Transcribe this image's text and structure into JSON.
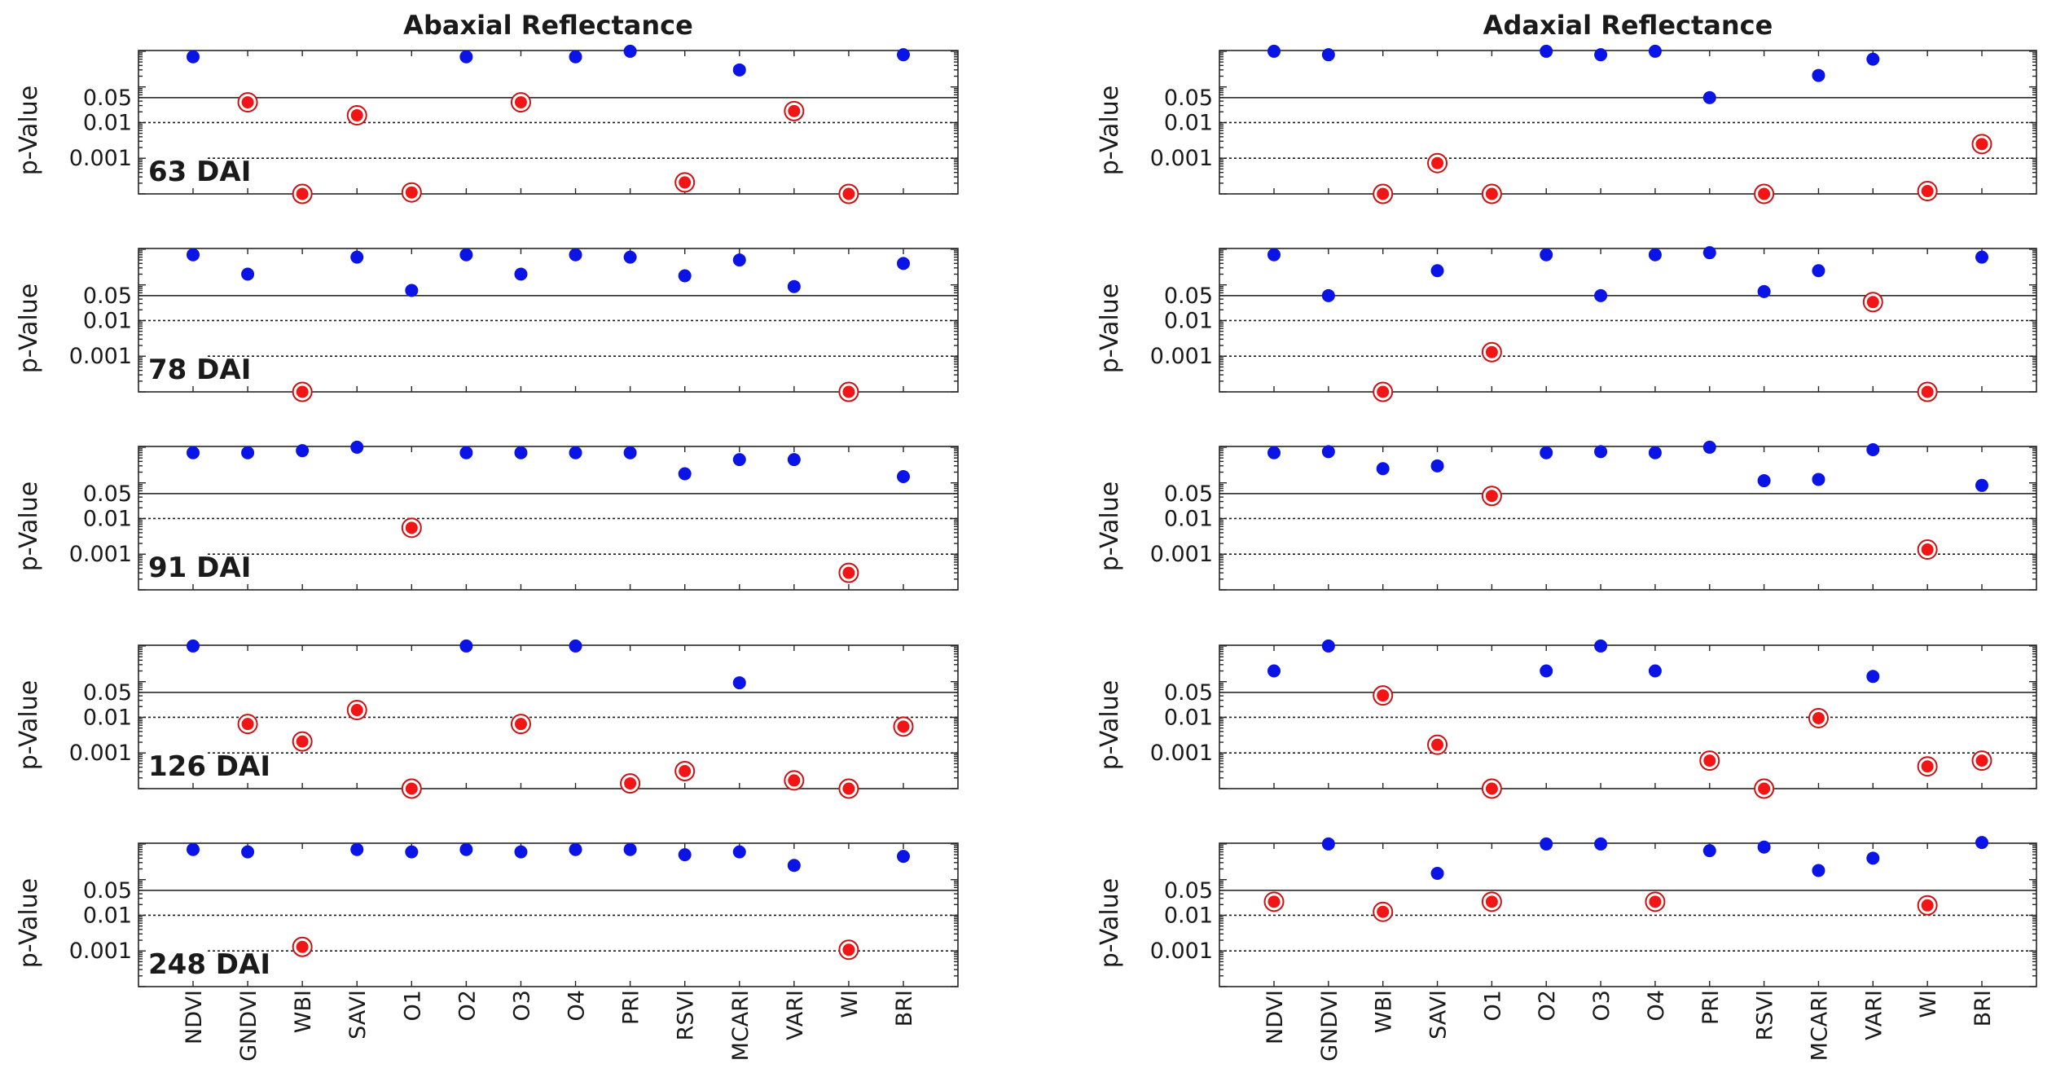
{
  "colors": {
    "nonsignificant": "#0a14e6",
    "significant_fill": "#f21515",
    "significant_ring": "#c81414",
    "axis": "#262626"
  },
  "chart_data": [
    {
      "type": "scatter",
      "title": "Abaxial Reflectance",
      "ylabel": "p-Value",
      "yscale": "log",
      "yticks": [
        "0.05",
        "0.01",
        "0.001"
      ],
      "reference_lines": [
        {
          "p": 0.05,
          "style": "solid"
        },
        {
          "p": 0.01,
          "style": "dotted"
        },
        {
          "p": 0.001,
          "style": "dotted"
        }
      ],
      "categories": [
        "NDVI",
        "GNDVI",
        "WBI",
        "SAVI",
        "O1",
        "O2",
        "O3",
        "O4",
        "PRI",
        "RSVI",
        "MCARI",
        "VARI",
        "WI",
        "BRI"
      ],
      "significance_threshold": 0.05,
      "series": [
        {
          "label": "63 DAI",
          "p": [
            0.7,
            0.037,
            0.0001,
            0.016,
            0.00011,
            0.7,
            0.037,
            0.7,
            1.0,
            0.00021,
            0.3,
            0.021,
            0.0001,
            0.8
          ]
        },
        {
          "label": "78 DAI",
          "p": [
            0.7,
            0.2,
            0.0001,
            0.6,
            0.07,
            0.7,
            0.2,
            0.7,
            0.6,
            0.18,
            0.5,
            0.09,
            0.0001,
            0.4
          ]
        },
        {
          "label": "91 DAI",
          "p": [
            0.7,
            0.7,
            0.8,
            1.0,
            0.0055,
            0.7,
            0.7,
            0.7,
            0.7,
            0.18,
            0.45,
            0.45,
            0.0003,
            0.15
          ]
        },
        {
          "label": "126 DAI",
          "p": [
            1.0,
            0.0065,
            0.0021,
            0.016,
            0.0001,
            1.0,
            0.0065,
            1.0,
            0.00014,
            0.00031,
            0.093,
            0.00017,
            0.0001,
            0.0055
          ]
        },
        {
          "label": "248 DAI",
          "p": [
            0.7,
            0.6,
            0.0013,
            0.7,
            0.6,
            0.7,
            0.6,
            0.7,
            0.7,
            0.5,
            0.6,
            0.25,
            0.00108,
            0.45
          ]
        }
      ]
    },
    {
      "type": "scatter",
      "title": "Adaxial Reflectance",
      "ylabel": "p-Value",
      "yscale": "log",
      "yticks": [
        "0.05",
        "0.01",
        "0.001"
      ],
      "reference_lines": [
        {
          "p": 0.05,
          "style": "solid"
        },
        {
          "p": 0.01,
          "style": "dotted"
        },
        {
          "p": 0.001,
          "style": "dotted"
        }
      ],
      "categories": [
        "NDVI",
        "GNDVI",
        "WBI",
        "SAVI",
        "O1",
        "O2",
        "O3",
        "O4",
        "PRI",
        "RSVI",
        "MCARI",
        "VARI",
        "WI",
        "BRI"
      ],
      "significance_threshold": 0.05,
      "series": [
        {
          "label": "",
          "p": [
            1.0,
            0.8,
            0.0001,
            0.00073,
            0.0001,
            1.0,
            0.8,
            1.0,
            0.05,
            0.0001,
            0.21,
            0.6,
            0.00012,
            0.0025
          ]
        },
        {
          "label": "",
          "p": [
            0.7,
            0.05,
            0.0001,
            0.25,
            0.0013,
            0.7,
            0.05,
            0.7,
            0.8,
            0.065,
            0.25,
            0.033,
            0.0001,
            0.6
          ]
        },
        {
          "label": "",
          "p": [
            0.7,
            0.75,
            0.25,
            0.3,
            0.043,
            0.7,
            0.75,
            0.7,
            1.0,
            0.115,
            0.125,
            0.85,
            0.00135,
            0.085
          ]
        },
        {
          "label": "",
          "p": [
            0.2,
            1.0,
            0.041,
            0.0017,
            0.0001,
            0.2,
            1.0,
            0.2,
            0.00061,
            0.0001,
            0.0095,
            0.14,
            0.00042,
            0.00061
          ]
        },
        {
          "label": "",
          "p": [
            0.024,
            1.0,
            0.0125,
            0.15,
            0.024,
            1.0,
            1.0,
            0.024,
            0.65,
            0.82,
            0.18,
            0.4,
            0.019,
            1.1
          ]
        }
      ]
    }
  ]
}
